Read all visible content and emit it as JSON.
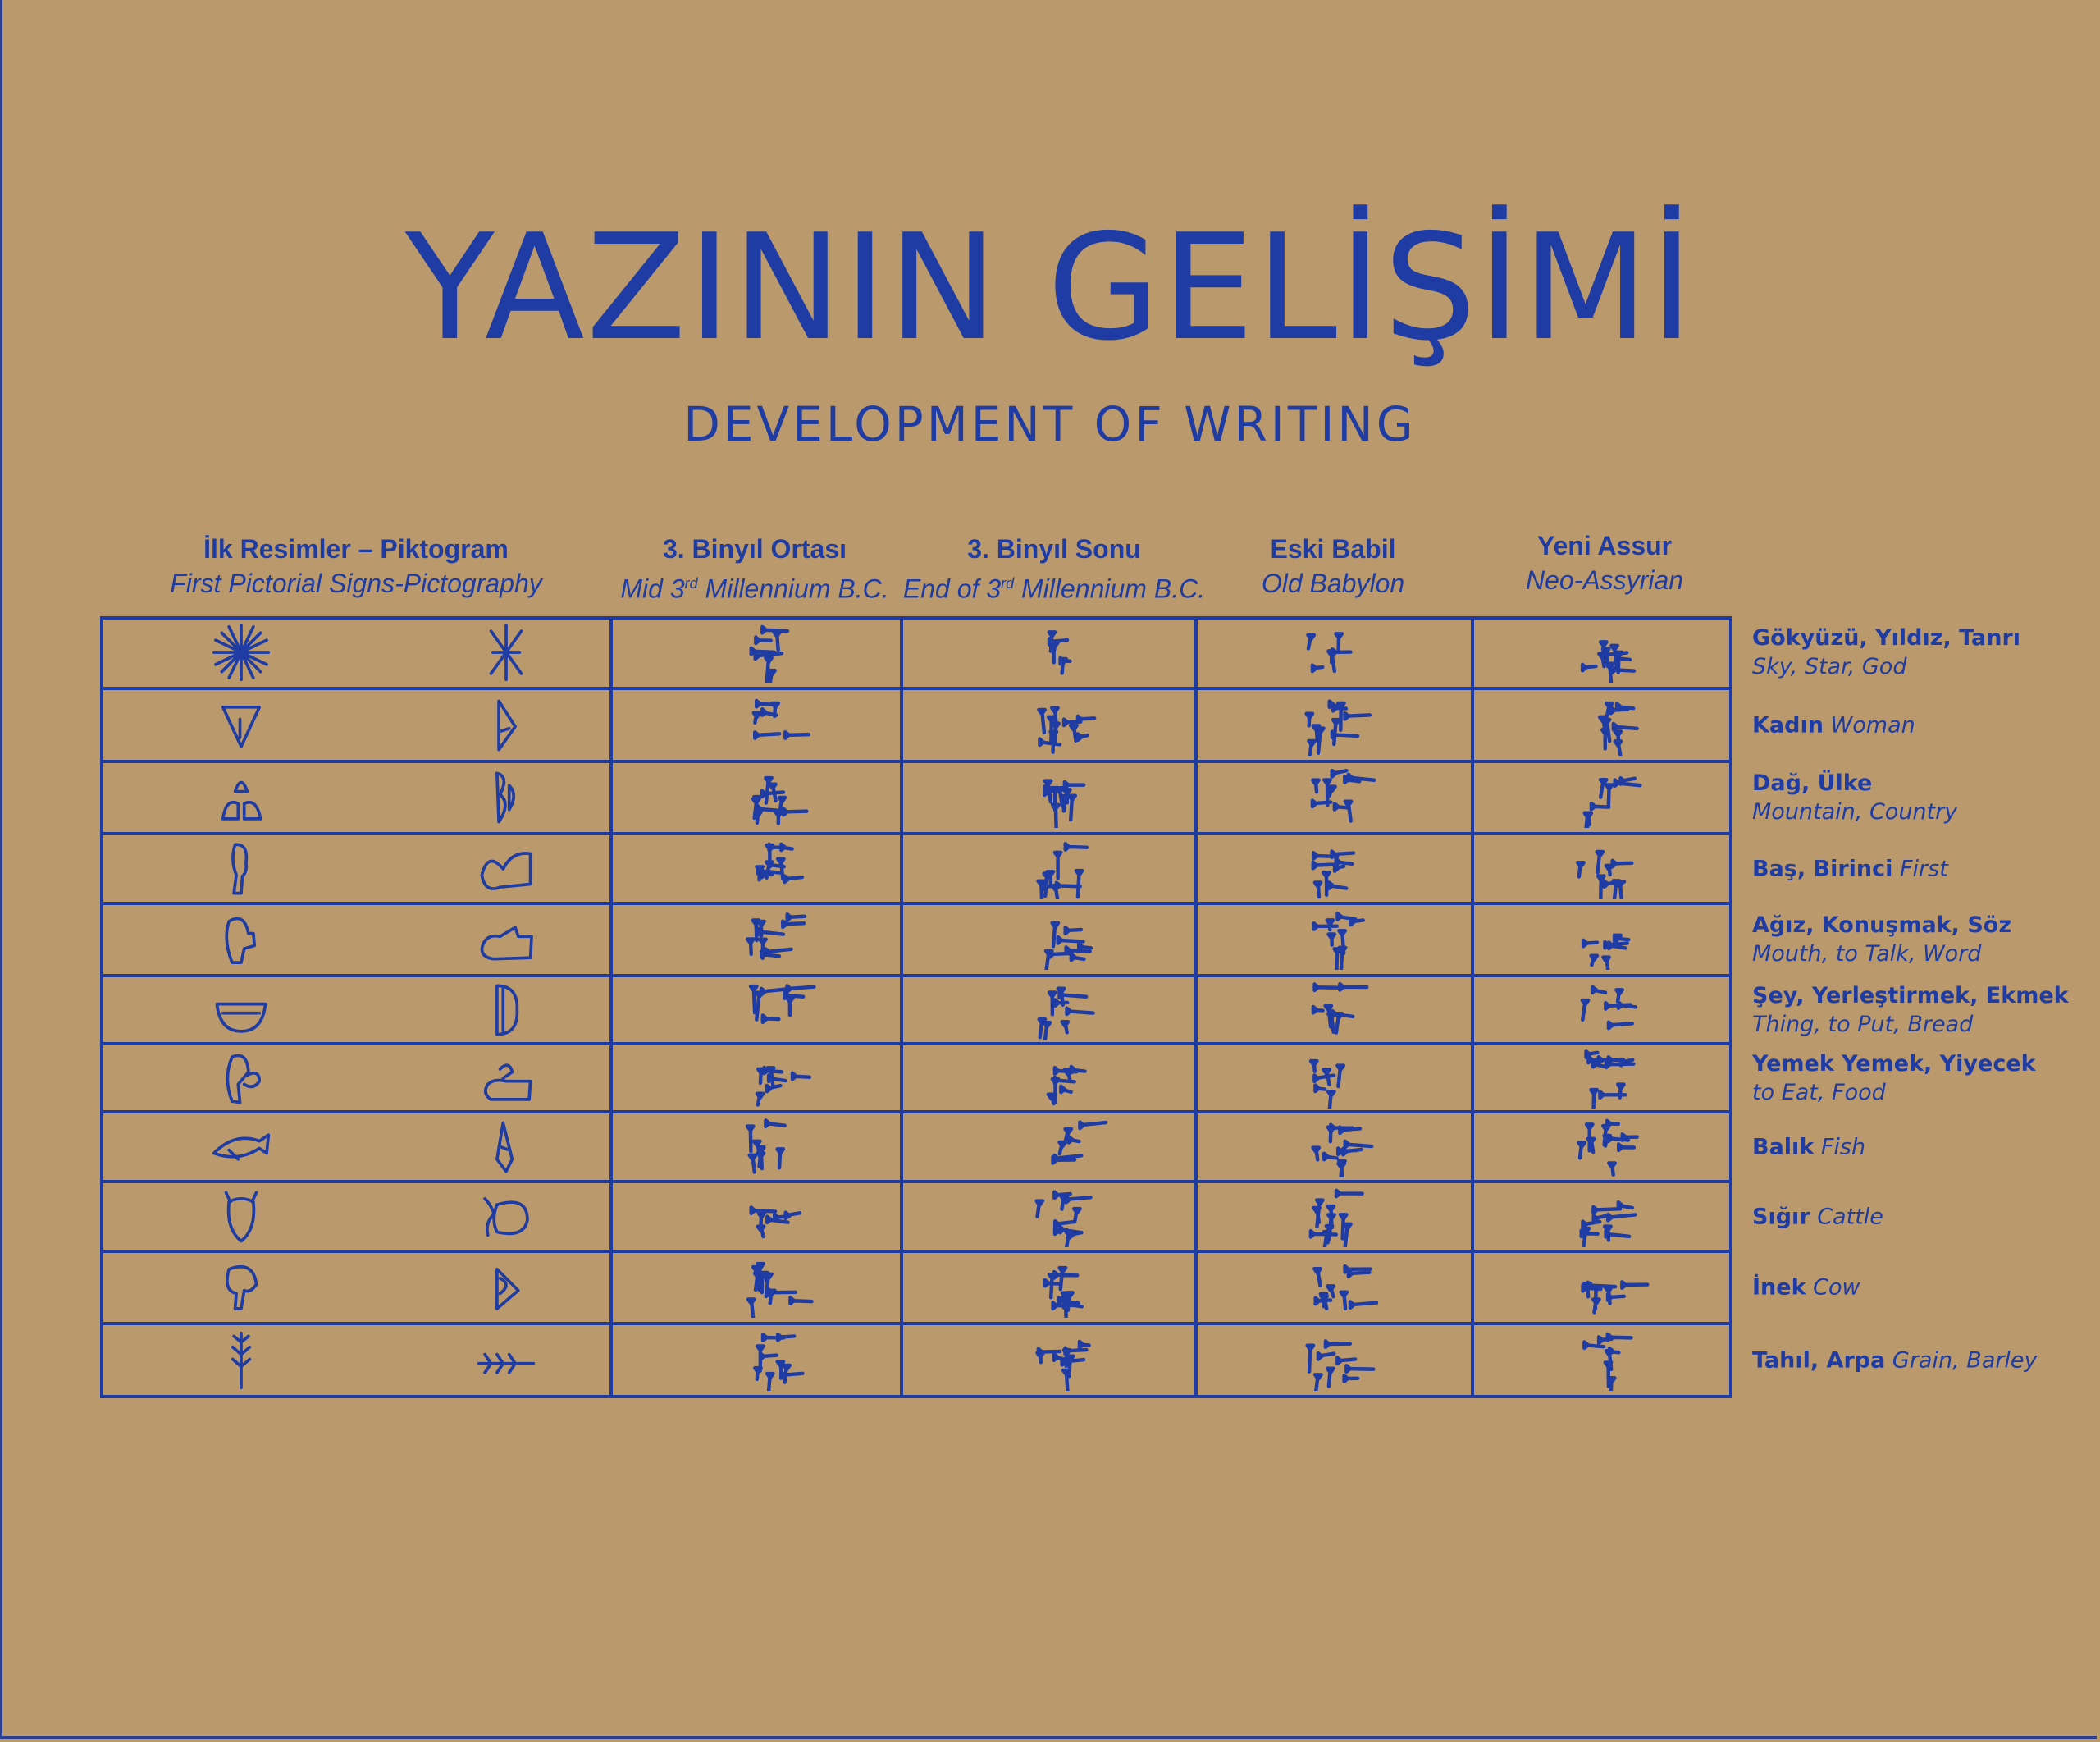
{
  "colors": {
    "background": "#BA9A6C",
    "ink": "#1E3CA4"
  },
  "title": "YAZININ GELİŞİMİ",
  "subtitle": "DEVELOPMENT OF WRITING",
  "columns": [
    {
      "tr": "İlk Resimler – Piktogram",
      "en": "First Pictorial Signs-Pictography"
    },
    {
      "tr": "3. Binyıl Ortası",
      "en_pre": "Mid 3",
      "en_sup": "rd",
      "en_post": " Millennium B.C."
    },
    {
      "tr": "3. Binyıl Sonu",
      "en_pre": "End of 3",
      "en_sup": "rd",
      "en_post": " Millennium B.C."
    },
    {
      "tr": "Eski Babil",
      "en": "Old Babylon"
    },
    {
      "tr": "Yeni Assur",
      "en": "Neo-Assyrian"
    }
  ],
  "rows": [
    {
      "tr": "Gökyüzü, Yıldız, Tanrı",
      "en": "Sky, Star, God",
      "two_lines": true,
      "icon": "star-sign"
    },
    {
      "tr": "Kadın",
      "en": "Woman",
      "two_lines": false,
      "icon": "woman-sign"
    },
    {
      "tr": "Dağ, Ülke",
      "en": "Mountain, Country",
      "two_lines": true,
      "icon": "mountain-sign"
    },
    {
      "tr": "Baş, Birinci",
      "en": "First",
      "two_lines": false,
      "icon": "head-sign"
    },
    {
      "tr": "Ağız, Konuşmak, Söz",
      "en": "Mouth, to Talk, Word",
      "two_lines": true,
      "icon": "mouth-sign"
    },
    {
      "tr": "Şey, Yerleştirmek, Ekmek",
      "en": "Thing, to Put, Bread",
      "two_lines": true,
      "icon": "bowl-sign"
    },
    {
      "tr": "Yemek Yemek, Yiyecek",
      "en": "to Eat, Food",
      "two_lines": true,
      "icon": "eat-sign"
    },
    {
      "tr": "Balık",
      "en": "Fish",
      "two_lines": false,
      "icon": "fish-sign"
    },
    {
      "tr": "Sığır",
      "en": "Cattle",
      "two_lines": false,
      "icon": "cattle-sign"
    },
    {
      "tr": "İnek",
      "en": "Cow",
      "two_lines": false,
      "icon": "cow-sign"
    },
    {
      "tr": "Tahıl, Arpa",
      "en": "Grain, Barley",
      "two_lines": false,
      "icon": "grain-sign"
    }
  ]
}
